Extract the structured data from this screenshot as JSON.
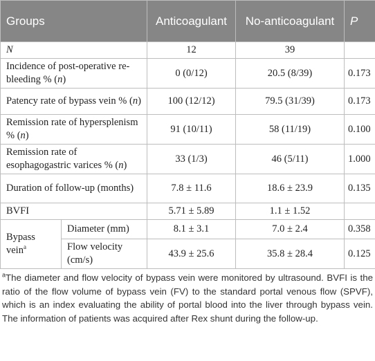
{
  "table": {
    "header": [
      [
        "Groups"
      ],
      [
        "Anticoagulant"
      ],
      [
        "No-anticoagulant"
      ],
      [
        {
          "i": "P"
        }
      ]
    ],
    "rows": [
      [
        [
          {
            "i": "N"
          }
        ],
        "12",
        "39",
        null
      ],
      [
        [
          "Incidence of post-operative re-bleeding % (",
          {
            "i": "n"
          },
          ")"
        ],
        "0 (0/12)",
        "20.5 (8/39)",
        "0.173"
      ],
      [
        [
          "Patency rate of bypass vein % (",
          {
            "i": "n"
          },
          ")"
        ],
        "100 (12/12)",
        "79.5 (31/39)",
        "0.173"
      ],
      [
        [
          "Remission rate of hypersplenism % (",
          {
            "i": "n"
          },
          ")"
        ],
        "91 (10/11)",
        "58 (11/19)",
        "0.100"
      ],
      [
        [
          "Remission rate of esophagogastric varices % (",
          {
            "i": "n"
          },
          ")"
        ],
        "33 (1/3)",
        "46 (5/11)",
        "1.000"
      ],
      [
        [
          "Duration of follow-up (months)"
        ],
        "7.8 ± 11.6",
        "18.6 ± 23.9",
        "0.135"
      ],
      [
        [
          "BVFI"
        ],
        "5.71 ± 5.89",
        "1.1 ± 1.52",
        null
      ]
    ],
    "group": {
      "label": [
        "Bypass vein",
        {
          "sup": "a"
        }
      ],
      "rows": [
        [
          "Diameter (mm)",
          "8.1 ± 3.1",
          "7.0 ± 2.4",
          "0.358"
        ],
        [
          "Flow velocity (cm/s)",
          "43.9 ± 25.6",
          "35.8 ± 28.4",
          "0.125"
        ]
      ]
    },
    "footnote": [
      {
        "sup": "a"
      },
      "The diameter and flow velocity of bypass vein were monitored by ultrasound. BVFI is the ratio of the flow volume of bypass vein (FV) to the standard portal venous flow (SPVF), which is an index evaluating the ability of portal blood into the liver through bypass vein. The information of patients was acquired after Rex shunt during the follow-up."
    ]
  }
}
